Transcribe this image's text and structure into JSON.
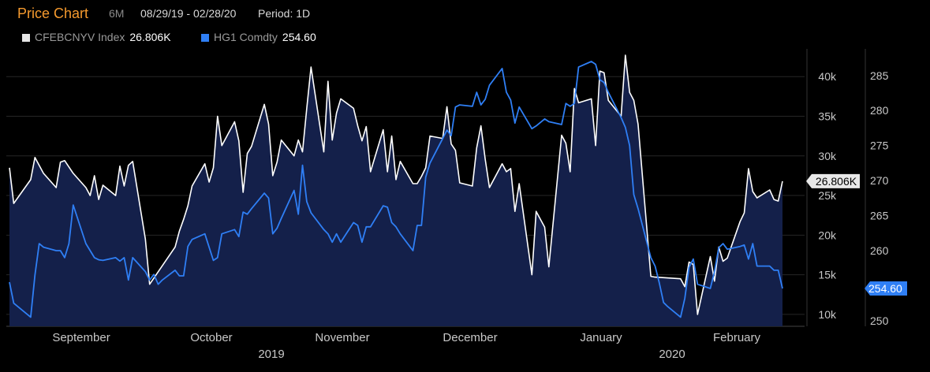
{
  "header": {
    "title": "Price Chart",
    "range": "6M",
    "dates": "08/29/19 - 02/28/20",
    "period": "Period: 1D"
  },
  "legend": [
    {
      "name": "CFEBCNYV Index",
      "value": "26.806K",
      "color": "#e6e6e6"
    },
    {
      "name": "HG1 Comdty",
      "value": "254.60",
      "color": "#2f7ff5"
    }
  ],
  "colors": {
    "background": "#000000",
    "area_fill": "#14204a",
    "white_series": "#ffffff",
    "blue_series": "#2f7ff5",
    "title": "#f59a2e",
    "tag_white_bg": "#e8e8e8",
    "tag_blue_bg": "#2f7ff5"
  },
  "chart_data": {
    "type": "line",
    "title": "Price Chart",
    "x_labels": [
      "September",
      "October",
      "November",
      "December",
      "January",
      "February"
    ],
    "year_labels": [
      "2019",
      "2020"
    ],
    "y_left": {
      "ticks": [
        "10k",
        "15k",
        "20k",
        "25k",
        "30k",
        "35k",
        "40k"
      ],
      "range": [
        8500,
        43500
      ]
    },
    "y_right": {
      "ticks": [
        "250",
        "255",
        "260",
        "265",
        "270",
        "275",
        "280",
        "285"
      ],
      "range": [
        249.2,
        288.8
      ]
    },
    "last_value_tags": {
      "white": "26.806K",
      "blue": "254.60"
    },
    "series": [
      {
        "name": "CFEBCNYV Index",
        "axis": "left",
        "color": "#ffffff",
        "filled": true,
        "points": [
          [
            "2019-08-29",
            28500
          ],
          [
            "2019-08-30",
            24000
          ],
          [
            "2019-09-03",
            27000
          ],
          [
            "2019-09-04",
            29800
          ],
          [
            "2019-09-06",
            27800
          ],
          [
            "2019-09-09",
            26000
          ],
          [
            "2019-09-10",
            29200
          ],
          [
            "2019-09-11",
            29400
          ],
          [
            "2019-09-13",
            27800
          ],
          [
            "2019-09-16",
            26000
          ],
          [
            "2019-09-17",
            25000
          ],
          [
            "2019-09-18",
            27500
          ],
          [
            "2019-09-19",
            24500
          ],
          [
            "2019-09-20",
            26300
          ],
          [
            "2019-09-23",
            25000
          ],
          [
            "2019-09-24",
            28700
          ],
          [
            "2019-09-25",
            26200
          ],
          [
            "2019-09-26",
            28800
          ],
          [
            "2019-09-27",
            29300
          ],
          [
            "2019-09-30",
            19500
          ],
          [
            "2019-10-01",
            13800
          ],
          [
            "2019-10-07",
            18500
          ],
          [
            "2019-10-08",
            20500
          ],
          [
            "2019-10-09",
            22000
          ],
          [
            "2019-10-10",
            23700
          ],
          [
            "2019-10-11",
            26200
          ],
          [
            "2019-10-14",
            29000
          ],
          [
            "2019-10-15",
            26700
          ],
          [
            "2019-10-16",
            28500
          ],
          [
            "2019-10-17",
            35000
          ],
          [
            "2019-10-18",
            31300
          ],
          [
            "2019-10-21",
            34300
          ],
          [
            "2019-10-22",
            31900
          ],
          [
            "2019-10-23",
            25400
          ],
          [
            "2019-10-24",
            30300
          ],
          [
            "2019-10-25",
            31200
          ],
          [
            "2019-10-28",
            36500
          ],
          [
            "2019-10-29",
            34000
          ],
          [
            "2019-10-30",
            27500
          ],
          [
            "2019-10-31",
            29200
          ],
          [
            "2019-11-01",
            32000
          ],
          [
            "2019-11-04",
            30000
          ],
          [
            "2019-11-05",
            32000
          ],
          [
            "2019-11-06",
            30500
          ],
          [
            "2019-11-07",
            36000
          ],
          [
            "2019-11-08",
            41200
          ],
          [
            "2019-11-11",
            30500
          ],
          [
            "2019-11-12",
            39400
          ],
          [
            "2019-11-13",
            32000
          ],
          [
            "2019-11-14",
            35400
          ],
          [
            "2019-11-15",
            37200
          ],
          [
            "2019-11-18",
            36000
          ],
          [
            "2019-11-19",
            33800
          ],
          [
            "2019-11-20",
            31900
          ],
          [
            "2019-11-21",
            33700
          ],
          [
            "2019-11-22",
            28000
          ],
          [
            "2019-11-25",
            33300
          ],
          [
            "2019-11-26",
            28000
          ],
          [
            "2019-11-27",
            32500
          ],
          [
            "2019-11-28",
            27000
          ],
          [
            "2019-11-29",
            29300
          ],
          [
            "2019-12-02",
            26500
          ],
          [
            "2019-12-03",
            26500
          ],
          [
            "2019-12-04",
            27400
          ],
          [
            "2019-12-05",
            28500
          ],
          [
            "2019-12-06",
            32500
          ],
          [
            "2019-12-09",
            32200
          ],
          [
            "2019-12-10",
            36200
          ],
          [
            "2019-12-11",
            31500
          ],
          [
            "2019-12-12",
            30700
          ],
          [
            "2019-12-13",
            26600
          ],
          [
            "2019-12-16",
            26200
          ],
          [
            "2019-12-17",
            31000
          ],
          [
            "2019-12-18",
            33800
          ],
          [
            "2019-12-19",
            29600
          ],
          [
            "2019-12-20",
            26000
          ],
          [
            "2019-12-23",
            29000
          ],
          [
            "2019-12-24",
            28000
          ],
          [
            "2019-12-25",
            28400
          ],
          [
            "2019-12-26",
            23000
          ],
          [
            "2019-12-27",
            26500
          ],
          [
            "2019-12-30",
            15000
          ],
          [
            "2019-12-31",
            23000
          ],
          [
            "2020-01-02",
            21000
          ],
          [
            "2020-01-03",
            16000
          ],
          [
            "2020-01-06",
            32600
          ],
          [
            "2020-01-07",
            31600
          ],
          [
            "2020-01-08",
            28000
          ],
          [
            "2020-01-09",
            38500
          ],
          [
            "2020-01-10",
            36700
          ],
          [
            "2020-01-13",
            37200
          ],
          [
            "2020-01-14",
            31300
          ],
          [
            "2020-01-15",
            40700
          ],
          [
            "2020-01-16",
            40500
          ],
          [
            "2020-01-17",
            37000
          ],
          [
            "2020-01-20",
            35000
          ],
          [
            "2020-01-21",
            42700
          ],
          [
            "2020-01-22",
            38000
          ],
          [
            "2020-01-23",
            37000
          ],
          [
            "2020-01-24",
            34000
          ],
          [
            "2020-01-27",
            14800
          ],
          [
            "2020-01-28",
            14700
          ],
          [
            "2020-02-03",
            14500
          ],
          [
            "2020-02-04",
            13500
          ],
          [
            "2020-02-05",
            16600
          ],
          [
            "2020-02-06",
            16300
          ],
          [
            "2020-02-07",
            10000
          ],
          [
            "2020-02-10",
            17300
          ],
          [
            "2020-02-11",
            14200
          ],
          [
            "2020-02-12",
            18500
          ],
          [
            "2020-02-13",
            16700
          ],
          [
            "2020-02-14",
            17100
          ],
          [
            "2020-02-17",
            21700
          ],
          [
            "2020-02-18",
            22800
          ],
          [
            "2020-02-19",
            28400
          ],
          [
            "2020-02-20",
            25500
          ],
          [
            "2020-02-21",
            24700
          ],
          [
            "2020-02-24",
            25700
          ],
          [
            "2020-02-25",
            24500
          ],
          [
            "2020-02-26",
            24300
          ],
          [
            "2020-02-27",
            26806
          ]
        ]
      },
      {
        "name": "HG1 Comdty",
        "axis": "right",
        "color": "#2f7ff5",
        "filled": false,
        "points": [
          [
            "2019-08-29",
            255.5
          ],
          [
            "2019-08-30",
            252.5
          ],
          [
            "2019-09-03",
            250.5
          ],
          [
            "2019-09-04",
            256.5
          ],
          [
            "2019-09-05",
            261.0
          ],
          [
            "2019-09-06",
            260.5
          ],
          [
            "2019-09-09",
            260.0
          ],
          [
            "2019-09-10",
            260.0
          ],
          [
            "2019-09-11",
            259.0
          ],
          [
            "2019-09-12",
            261.0
          ],
          [
            "2019-09-13",
            266.5
          ],
          [
            "2019-09-16",
            261.0
          ],
          [
            "2019-09-17",
            260.0
          ],
          [
            "2019-09-18",
            259.0
          ],
          [
            "2019-09-19",
            258.7
          ],
          [
            "2019-09-20",
            258.6
          ],
          [
            "2019-09-23",
            259.0
          ],
          [
            "2019-09-24",
            258.5
          ],
          [
            "2019-09-25",
            259.0
          ],
          [
            "2019-09-26",
            255.8
          ],
          [
            "2019-09-27",
            259.0
          ],
          [
            "2019-09-30",
            257.0
          ],
          [
            "2019-10-01",
            255.8
          ],
          [
            "2019-10-02",
            256.6
          ],
          [
            "2019-10-03",
            255.2
          ],
          [
            "2019-10-04",
            255.8
          ],
          [
            "2019-10-07",
            257.2
          ],
          [
            "2019-10-08",
            256.4
          ],
          [
            "2019-10-09",
            256.4
          ],
          [
            "2019-10-10",
            260.6
          ],
          [
            "2019-10-11",
            261.6
          ],
          [
            "2019-10-14",
            262.4
          ],
          [
            "2019-10-15",
            260.5
          ],
          [
            "2019-10-16",
            258.6
          ],
          [
            "2019-10-17",
            259.0
          ],
          [
            "2019-10-18",
            262.4
          ],
          [
            "2019-10-21",
            263.0
          ],
          [
            "2019-10-22",
            262.0
          ],
          [
            "2019-10-23",
            265.5
          ],
          [
            "2019-10-24",
            265.2
          ],
          [
            "2019-10-25",
            266.0
          ],
          [
            "2019-10-28",
            268.2
          ],
          [
            "2019-10-29",
            267.5
          ],
          [
            "2019-10-30",
            262.4
          ],
          [
            "2019-10-31",
            263.2
          ],
          [
            "2019-11-01",
            264.6
          ],
          [
            "2019-11-04",
            268.6
          ],
          [
            "2019-11-05",
            265.2
          ],
          [
            "2019-11-06",
            272.2
          ],
          [
            "2019-11-07",
            267.0
          ],
          [
            "2019-11-08",
            265.4
          ],
          [
            "2019-11-11",
            263.0
          ],
          [
            "2019-11-12",
            262.4
          ],
          [
            "2019-11-13",
            261.2
          ],
          [
            "2019-11-14",
            262.4
          ],
          [
            "2019-11-15",
            261.2
          ],
          [
            "2019-11-18",
            264.0
          ],
          [
            "2019-11-19",
            263.6
          ],
          [
            "2019-11-20",
            261.2
          ],
          [
            "2019-11-21",
            263.4
          ],
          [
            "2019-11-22",
            263.4
          ],
          [
            "2019-11-25",
            266.4
          ],
          [
            "2019-11-26",
            266.2
          ],
          [
            "2019-11-27",
            264.0
          ],
          [
            "2019-11-28",
            263.4
          ],
          [
            "2019-11-29",
            262.4
          ],
          [
            "2019-12-02",
            260.0
          ],
          [
            "2019-12-03",
            263.6
          ],
          [
            "2019-12-04",
            263.6
          ],
          [
            "2019-12-05",
            270.5
          ],
          [
            "2019-12-06",
            272.5
          ],
          [
            "2019-12-09",
            276.0
          ],
          [
            "2019-12-10",
            277.2
          ],
          [
            "2019-12-11",
            276.4
          ],
          [
            "2019-12-12",
            280.5
          ],
          [
            "2019-12-13",
            280.8
          ],
          [
            "2019-12-16",
            280.6
          ],
          [
            "2019-12-17",
            282.6
          ],
          [
            "2019-12-18",
            280.8
          ],
          [
            "2019-12-19",
            281.6
          ],
          [
            "2019-12-20",
            283.6
          ],
          [
            "2019-12-23",
            286.0
          ],
          [
            "2019-12-24",
            282.6
          ],
          [
            "2019-12-25",
            281.5
          ],
          [
            "2019-12-26",
            278.2
          ],
          [
            "2019-12-27",
            280.5
          ],
          [
            "2019-12-30",
            277.4
          ],
          [
            "2019-12-31",
            277.8
          ],
          [
            "2020-01-02",
            278.8
          ],
          [
            "2020-01-03",
            278.4
          ],
          [
            "2020-01-06",
            278.0
          ],
          [
            "2020-01-07",
            281.0
          ],
          [
            "2020-01-08",
            280.6
          ],
          [
            "2020-01-09",
            281.0
          ],
          [
            "2020-01-10",
            286.2
          ],
          [
            "2020-01-13",
            287.0
          ],
          [
            "2020-01-14",
            286.6
          ],
          [
            "2020-01-15",
            284.4
          ],
          [
            "2020-01-16",
            284.0
          ],
          [
            "2020-01-17",
            282.6
          ],
          [
            "2020-01-20",
            279.0
          ],
          [
            "2020-01-21",
            277.6
          ],
          [
            "2020-01-22",
            275.0
          ],
          [
            "2020-01-23",
            268.0
          ],
          [
            "2020-01-24",
            266.0
          ],
          [
            "2020-01-27",
            259.0
          ],
          [
            "2020-01-28",
            257.8
          ],
          [
            "2020-01-29",
            255.4
          ],
          [
            "2020-01-30",
            252.6
          ],
          [
            "2020-01-31",
            252.0
          ],
          [
            "2020-02-03",
            250.5
          ],
          [
            "2020-02-04",
            253.2
          ],
          [
            "2020-02-05",
            257.6
          ],
          [
            "2020-02-06",
            258.8
          ],
          [
            "2020-02-07",
            255.2
          ],
          [
            "2020-02-10",
            254.6
          ],
          [
            "2020-02-11",
            257.0
          ],
          [
            "2020-02-12",
            260.4
          ],
          [
            "2020-02-13",
            261.0
          ],
          [
            "2020-02-14",
            260.2
          ],
          [
            "2020-02-17",
            260.6
          ],
          [
            "2020-02-18",
            260.8
          ],
          [
            "2020-02-19",
            258.8
          ],
          [
            "2020-02-20",
            261.0
          ],
          [
            "2020-02-21",
            257.8
          ],
          [
            "2020-02-24",
            257.8
          ],
          [
            "2020-02-25",
            257.2
          ],
          [
            "2020-02-26",
            257.2
          ],
          [
            "2020-02-27",
            254.6
          ]
        ]
      }
    ]
  }
}
